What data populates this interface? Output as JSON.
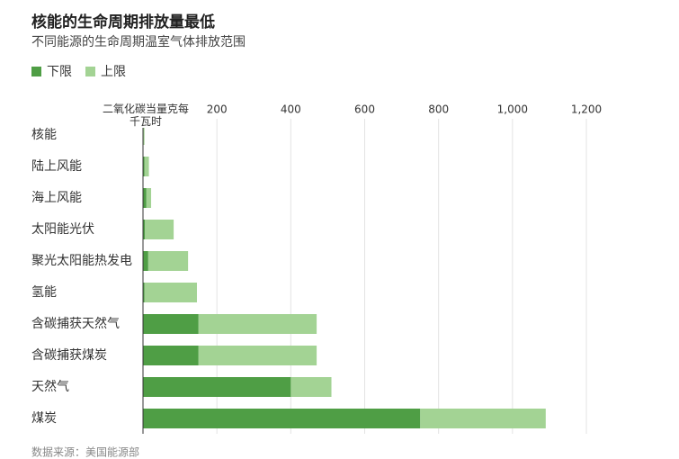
{
  "chart_data": {
    "type": "range-bar",
    "title": "核能的生命周期排放量最低",
    "subtitle": "不同能源的生命周期温室气体排放范围",
    "xlabel": "二氧化碳当量克每千瓦时",
    "source": "数据来源：美国能源部",
    "categories": [
      "核能",
      "陆上风能",
      "海上风能",
      "太阳能光伏",
      "聚光太阳能热发电",
      "氢能",
      "含碳捕获天然气",
      "含碳捕获煤炭",
      "天然气",
      "煤炭"
    ],
    "series": [
      {
        "name": "下限",
        "color": "#4f9e45",
        "values": [
          1,
          4,
          9,
          5,
          14,
          4,
          150,
          150,
          400,
          750
        ]
      },
      {
        "name": "上限",
        "color": "#a3d394",
        "values": [
          4,
          16,
          22,
          83,
          122,
          146,
          470,
          470,
          510,
          1090
        ]
      }
    ],
    "xlim": [
      0,
      1200
    ],
    "xticks": [
      0,
      200,
      400,
      600,
      800,
      {
        "value": 1000,
        "label": "1,000"
      },
      {
        "value": 1200,
        "label": "1,200"
      }
    ],
    "grid": true
  }
}
